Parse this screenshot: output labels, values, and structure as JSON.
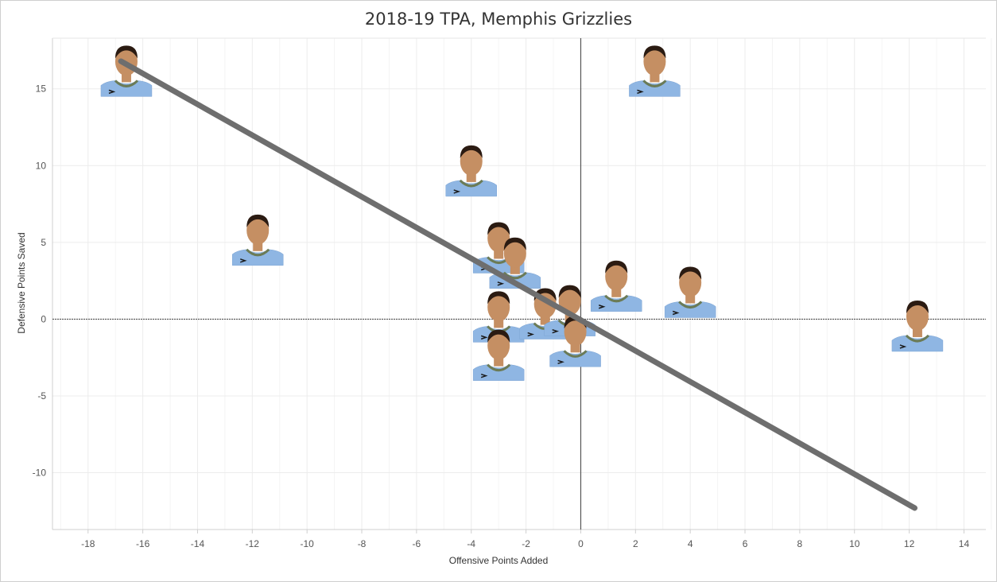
{
  "chart_data": {
    "type": "scatter",
    "title": "2018-19 TPA, Memphis Grizzlies",
    "xlabel": "Offensive Points Added",
    "ylabel": "Defensive Points Saved",
    "xlim": [
      -19.3,
      14.8
    ],
    "ylim": [
      -13.7,
      18.3
    ],
    "xticks": [
      -18,
      -16,
      -14,
      -12,
      -10,
      -8,
      -6,
      -4,
      -2,
      0,
      2,
      4,
      6,
      8,
      10,
      12,
      14
    ],
    "yticks": [
      -10,
      -5,
      0,
      5,
      10,
      15
    ],
    "grid": true,
    "points": [
      {
        "x": -16.6,
        "y": 14.5
      },
      {
        "x": -11.8,
        "y": 3.5
      },
      {
        "x": -4.0,
        "y": 8.0
      },
      {
        "x": -3.0,
        "y": 3.0
      },
      {
        "x": -2.4,
        "y": 2.0
      },
      {
        "x": -3.0,
        "y": -1.5
      },
      {
        "x": -3.0,
        "y": -4.0
      },
      {
        "x": -1.3,
        "y": -1.3
      },
      {
        "x": -0.4,
        "y": -1.1
      },
      {
        "x": -0.2,
        "y": -3.1
      },
      {
        "x": 1.3,
        "y": 0.5
      },
      {
        "x": 4.0,
        "y": 0.1
      },
      {
        "x": 2.7,
        "y": 14.5
      },
      {
        "x": 12.3,
        "y": -2.1
      }
    ],
    "trendline": {
      "x": [
        -16.8,
        12.2
      ],
      "y": [
        16.8,
        -12.3
      ]
    },
    "colors": {
      "jersey": "#8fb6e3",
      "trim": "#6b7b56",
      "trend": "#6e6e6e",
      "grid": "#ececec",
      "zero": "#555555",
      "skin": "#c58f63",
      "hair": "#2b1b12"
    }
  }
}
